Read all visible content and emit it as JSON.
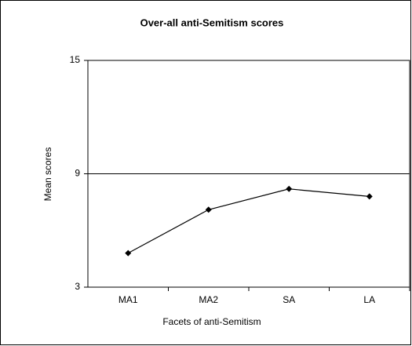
{
  "chart_data": {
    "type": "line",
    "title": "Over-all anti-Semitism scores",
    "x_label": "Facets of anti-Semitism",
    "y_label": "Mean scores",
    "categories": [
      "MA1",
      "MA2",
      "SA",
      "LA"
    ],
    "series": [
      {
        "name": "Mean scores",
        "color": "#000000",
        "values": [
          4.8,
          7.1,
          8.2,
          7.8
        ]
      }
    ],
    "ylim": [
      3,
      15
    ],
    "yticks": [
      3,
      9,
      15
    ],
    "grid": true
  }
}
